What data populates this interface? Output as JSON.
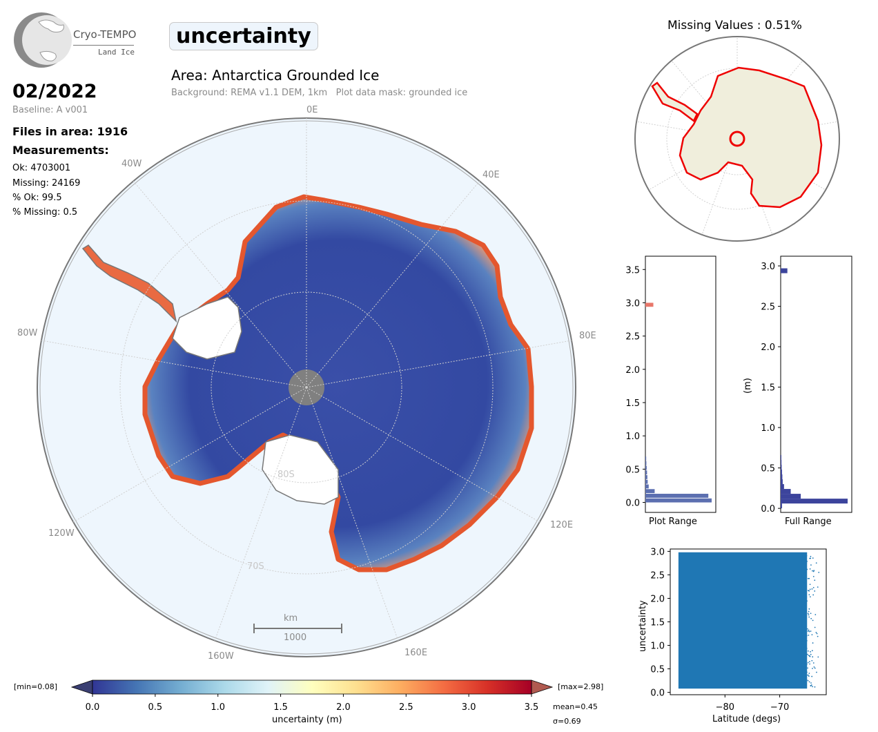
{
  "logo": {
    "name": "Cryo-TEMPO",
    "subtitle": "Land Ice"
  },
  "parameter": "uncertainty",
  "area_title": "Area: Antarctica Grounded Ice",
  "background_note": "Background: REMA v1.1 DEM, 1km   Plot data mask: grounded ice",
  "date": "02/2022",
  "baseline": "Baseline: A v001",
  "files_in_area": "Files in area: 1916",
  "measurements": {
    "heading": "Measurements:",
    "ok": "Ok: 4703001",
    "missing": "Missing: 24169",
    "pct_ok": "% Ok: 99.5",
    "pct_missing": "% Missing: 0.5"
  },
  "map": {
    "lon_labels": [
      "0E",
      "40E",
      "80E",
      "120E",
      "160E",
      "160W",
      "120W",
      "80W",
      "40W"
    ],
    "lat_labels": [
      "80S",
      "70S"
    ],
    "scale_bar": {
      "unit": "km",
      "value": "1000"
    }
  },
  "missing_map": {
    "title": "Missing Values : 0.51%"
  },
  "colors": {
    "ice_low": "#3046a0",
    "ice_high": "#e8552e",
    "ocean": "#eef6fd",
    "land": "#f0eedc",
    "missing": "#ee0000"
  },
  "chart_data": [
    {
      "type": "bar",
      "name": "plot-range-histogram",
      "xlabel": "Plot Range",
      "ylim": [
        -0.15,
        3.7
      ],
      "yticks": [
        "0.0",
        "0.5",
        "1.0",
        "1.5",
        "2.0",
        "2.5",
        "3.0",
        "3.5"
      ],
      "color": "#5c6fb0",
      "bins": [
        {
          "y": 0.03,
          "count": 1.0
        },
        {
          "y": 0.1,
          "count": 0.95
        },
        {
          "y": 0.17,
          "count": 0.14
        },
        {
          "y": 0.24,
          "count": 0.05
        },
        {
          "y": 0.31,
          "count": 0.035
        },
        {
          "y": 0.38,
          "count": 0.03
        },
        {
          "y": 0.45,
          "count": 0.025
        },
        {
          "y": 0.52,
          "count": 0.02
        },
        {
          "y": 0.59,
          "count": 0.015
        },
        {
          "y": 0.66,
          "count": 0.012
        },
        {
          "y": 2.97,
          "count": 0.12
        }
      ]
    },
    {
      "type": "bar",
      "name": "full-range-histogram",
      "xlabel": "Full Range",
      "ylabel": "(m)",
      "ylim": [
        -0.05,
        3.12
      ],
      "yticks": [
        "0.0",
        "0.5",
        "1.0",
        "1.5",
        "2.0",
        "2.5",
        "3.0"
      ],
      "color": "#3c449c",
      "bins": [
        {
          "y": 0.03,
          "count": 0.02
        },
        {
          "y": 0.09,
          "count": 1.0
        },
        {
          "y": 0.15,
          "count": 0.3
        },
        {
          "y": 0.21,
          "count": 0.15
        },
        {
          "y": 0.27,
          "count": 0.05
        },
        {
          "y": 0.33,
          "count": 0.03
        },
        {
          "y": 0.39,
          "count": 0.025
        },
        {
          "y": 0.45,
          "count": 0.02
        },
        {
          "y": 0.51,
          "count": 0.015
        },
        {
          "y": 0.57,
          "count": 0.012
        },
        {
          "y": 0.63,
          "count": 0.01
        },
        {
          "y": 2.94,
          "count": 0.1
        }
      ]
    },
    {
      "type": "scatter",
      "name": "latitude-scatter",
      "xlabel": "Latitude (degs)",
      "ylabel": "uncertainty",
      "xlim": [
        -90,
        -61.5
      ],
      "ylim": [
        -0.05,
        3.05
      ],
      "xticks": [
        -80,
        -70
      ],
      "xtick_labels": [
        "−80",
        "−70"
      ],
      "yticks": [
        "0.0",
        "0.5",
        "1.0",
        "1.5",
        "2.0",
        "2.5",
        "3.0"
      ],
      "color": "#1f77b4",
      "dense_region": {
        "x": [
          -88.5,
          -65.0
        ],
        "y": [
          0.08,
          2.98
        ]
      },
      "sparse_edge": {
        "x": [
          -66.0,
          -62.5
        ],
        "y": [
          0.1,
          2.95
        ]
      }
    },
    {
      "type": "colorbar",
      "name": "uncertainty-colorbar",
      "label": "uncertainty (m)",
      "range": [
        0,
        3.5
      ],
      "ticks": [
        "0.0",
        "0.5",
        "1.0",
        "1.5",
        "2.0",
        "2.5",
        "3.0",
        "3.5"
      ],
      "min_label": "[min=0.08]",
      "max_label": "[max=2.98]",
      "mean_label": "mean=0.45",
      "std_label": "σ=0.69",
      "stops": [
        "#313695",
        "#4575b4",
        "#74add1",
        "#abd9e9",
        "#e0f3f8",
        "#ffffbf",
        "#fee090",
        "#fdae61",
        "#f46d43",
        "#d73027",
        "#a50026"
      ]
    }
  ]
}
